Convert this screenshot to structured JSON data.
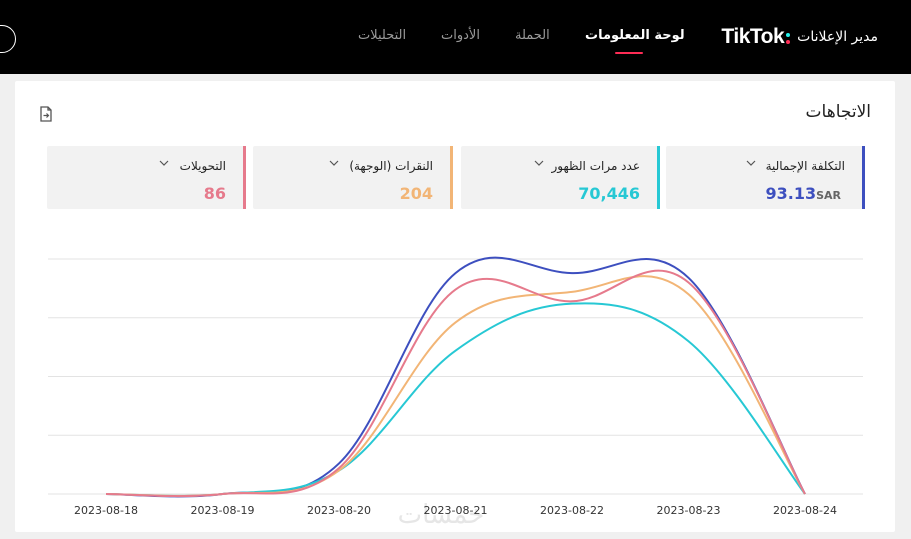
{
  "header": {
    "logo_text": "TikTok",
    "logo_suffix": "مدير الإعلانات",
    "nav": [
      {
        "label": "لوحة المعلومات",
        "active": true
      },
      {
        "label": "الحملة",
        "active": false
      },
      {
        "label": "الأدوات",
        "active": false
      },
      {
        "label": "التحليلات",
        "active": false
      }
    ]
  },
  "trends": {
    "title": "الاتجاهات",
    "metrics": [
      {
        "label": "التكلفة الإجمالية",
        "value": "93.13",
        "unit": "SAR",
        "color": "#3d4fbf"
      },
      {
        "label": "عدد مرات الظهور",
        "value": "70,446",
        "color": "#27c8d4"
      },
      {
        "label": "النقرات (الوجهة)",
        "value": "204",
        "color": "#f2b576"
      },
      {
        "label": "التحويلات",
        "value": "86",
        "color": "#e67a8c"
      }
    ]
  },
  "watermark": "خمسات",
  "chart_data": {
    "type": "line",
    "x": [
      "2023-08-18",
      "2023-08-19",
      "2023-08-20",
      "2023-08-21",
      "2023-08-22",
      "2023-08-23",
      "2023-08-24"
    ],
    "y_axis_labels": false,
    "grid": "horizontal",
    "series": [
      {
        "values": [
          0,
          0,
          0.13,
          0.94,
          0.94,
          0.92,
          0
        ],
        "color": "#3d4fbf"
      },
      {
        "values": [
          0,
          0,
          0.1,
          0.61,
          0.81,
          0.65,
          0
        ],
        "color": "#27c8d4"
      },
      {
        "values": [
          0,
          0,
          0.1,
          0.73,
          0.86,
          0.85,
          0
        ],
        "color": "#f2b576"
      },
      {
        "values": [
          0,
          0,
          0.11,
          0.87,
          0.82,
          0.9,
          0
        ],
        "color": "#e67a8c"
      }
    ]
  }
}
